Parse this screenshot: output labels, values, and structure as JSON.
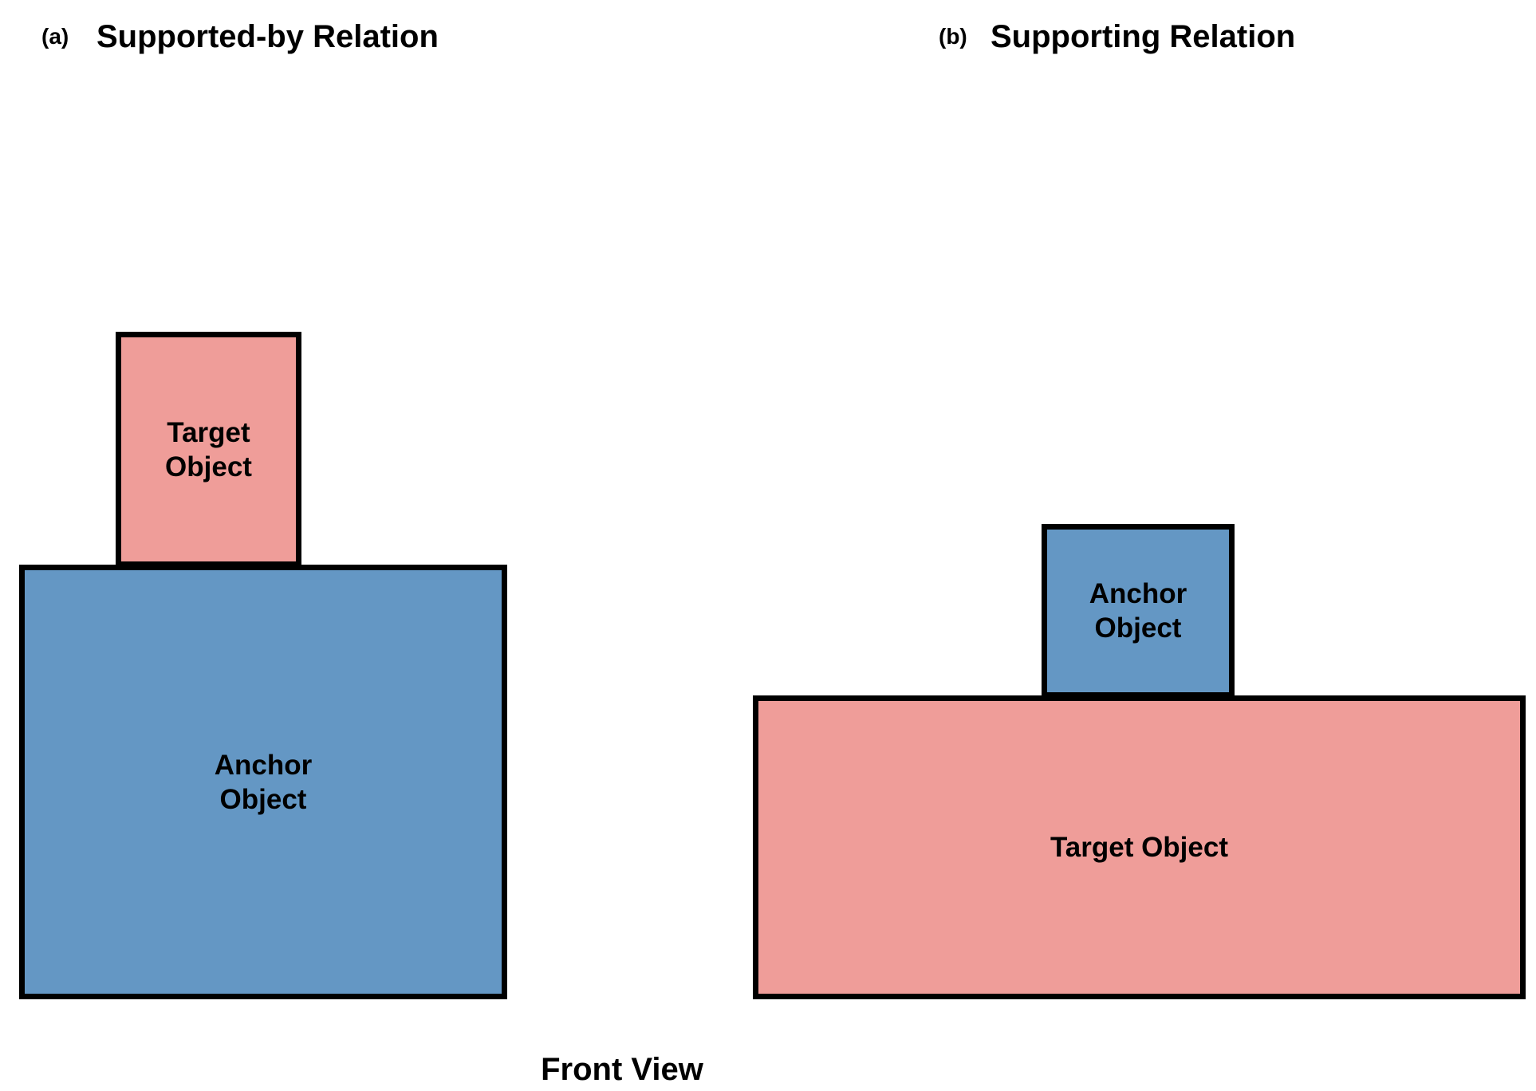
{
  "colors": {
    "anchor": "#6497c4",
    "target": "#ef9d99",
    "border": "#000000"
  },
  "panels": [
    {
      "label": "(a)",
      "title": "Supported-by Relation",
      "top_object": {
        "role": "target",
        "lines": [
          "Target",
          "Object"
        ]
      },
      "bottom_object": {
        "role": "anchor",
        "lines": [
          "Anchor",
          "Object"
        ]
      }
    },
    {
      "label": "(b)",
      "title": "Supporting Relation",
      "top_object": {
        "role": "anchor",
        "lines": [
          "Anchor",
          "Object"
        ]
      },
      "bottom_object": {
        "role": "target",
        "lines": [
          "Target Object"
        ]
      }
    }
  ],
  "caption": "Front View"
}
